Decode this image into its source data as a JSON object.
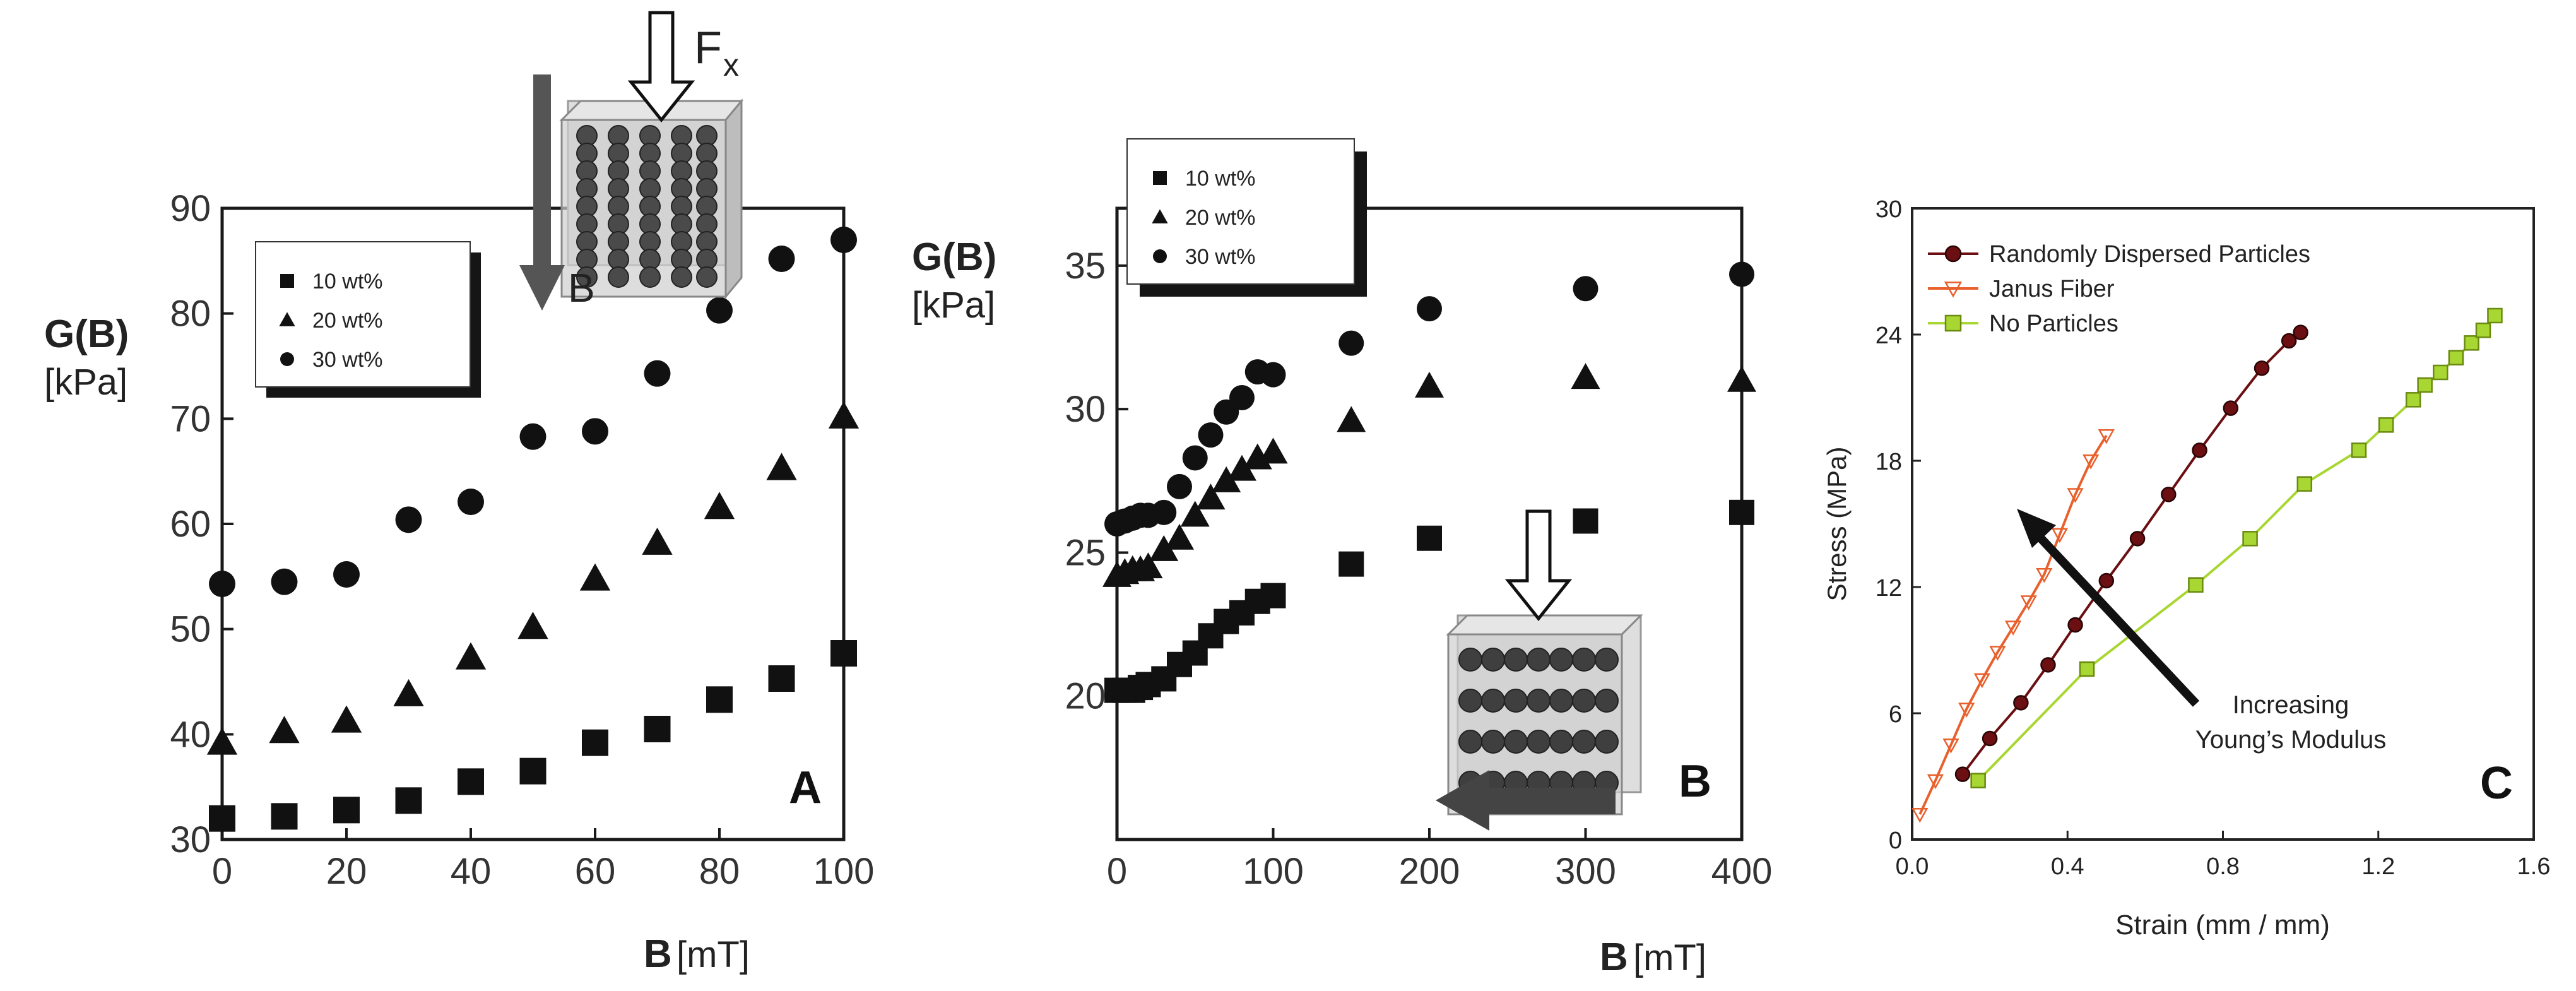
{
  "chart_data": [
    {
      "panel": "A",
      "type": "scatter",
      "xlabel_bold": "B",
      "xlabel_unit": "[mT]",
      "ylabel_bold": "G(B)",
      "ylabel_unit": "[kPa]",
      "xlim": [
        0,
        100
      ],
      "ylim": [
        30,
        90
      ],
      "xticks": [
        "0",
        "20",
        "40",
        "60",
        "80",
        "100"
      ],
      "yticks": [
        "30",
        "40",
        "50",
        "60",
        "70",
        "80",
        "90"
      ],
      "legend": "top-left",
      "inset_labels": [
        "F",
        "x",
        "B"
      ],
      "series": [
        {
          "name": "10 wt%",
          "marker": "square",
          "x": [
            0,
            10,
            20,
            30,
            40,
            50,
            60,
            70,
            80,
            90,
            100
          ],
          "y": [
            32,
            32.2,
            32.8,
            33.7,
            35.5,
            36.5,
            39.2,
            40.5,
            43.3,
            45.3,
            47.7
          ]
        },
        {
          "name": "20 wt%",
          "marker": "triangle",
          "x": [
            0,
            10,
            20,
            30,
            40,
            50,
            60,
            70,
            80,
            90,
            100
          ],
          "y": [
            39.2,
            40.3,
            41.3,
            43.8,
            47.3,
            50.2,
            54.8,
            58.2,
            61.6,
            65.3,
            70.2
          ]
        },
        {
          "name": "30 wt%",
          "marker": "circle",
          "x": [
            0,
            10,
            20,
            30,
            40,
            50,
            60,
            70,
            80,
            90,
            100
          ],
          "y": [
            54.3,
            54.5,
            55.2,
            60.4,
            62.1,
            68.3,
            68.8,
            74.3,
            80.3,
            85.2,
            87
          ]
        }
      ]
    },
    {
      "panel": "B",
      "type": "scatter",
      "xlabel_bold": "B",
      "xlabel_unit": "[mT]",
      "ylabel_bold": "G(B)",
      "ylabel_unit": "[kPa]",
      "xlim": [
        0,
        400
      ],
      "ylim": [
        15,
        37
      ],
      "xticks": [
        "0",
        "100",
        "200",
        "300",
        "400"
      ],
      "yticks": [
        "20",
        "25",
        "30",
        "35"
      ],
      "legend": "top-left",
      "series": [
        {
          "name": "10 wt%",
          "marker": "square",
          "x": [
            0,
            5,
            10,
            15,
            20,
            30,
            40,
            50,
            60,
            70,
            80,
            90,
            100,
            150,
            200,
            300,
            400
          ],
          "y": [
            20.2,
            20.2,
            20.2,
            20.3,
            20.4,
            20.6,
            21.1,
            21.5,
            22.1,
            22.6,
            22.9,
            23.3,
            23.5,
            24.6,
            25.5,
            26.1,
            26.4
          ]
        },
        {
          "name": "20 wt%",
          "marker": "triangle",
          "x": [
            0,
            5,
            10,
            15,
            20,
            30,
            40,
            50,
            60,
            70,
            80,
            90,
            100,
            150,
            200,
            300,
            400
          ],
          "y": [
            24.2,
            24.3,
            24.4,
            24.4,
            24.5,
            25.1,
            25.5,
            26.3,
            26.9,
            27.5,
            27.9,
            28.3,
            28.5,
            29.6,
            30.8,
            31.1,
            31
          ]
        },
        {
          "name": "30 wt%",
          "marker": "circle",
          "x": [
            0,
            5,
            10,
            15,
            20,
            30,
            40,
            50,
            60,
            70,
            80,
            90,
            100,
            150,
            200,
            300,
            400
          ],
          "y": [
            26,
            26.1,
            26.2,
            26.3,
            26.3,
            26.4,
            27.3,
            28.3,
            29.1,
            29.9,
            30.4,
            31.3,
            31.2,
            32.3,
            33.5,
            34.2,
            34.7
          ]
        }
      ]
    },
    {
      "panel": "C",
      "type": "line",
      "xlabel": "Strain (mm / mm)",
      "ylabel": "Stress (MPa)",
      "xlim": [
        0,
        1.6
      ],
      "ylim": [
        0,
        30
      ],
      "xticks": [
        "0.0",
        "0.4",
        "0.8",
        "1.2",
        "1.6"
      ],
      "yticks": [
        "0",
        "6",
        "12",
        "18",
        "24",
        "30"
      ],
      "legend": "top-left",
      "annotation": [
        "Increasing",
        "Young’s Modulus"
      ],
      "series": [
        {
          "name": "Randomly Dispersed Particles",
          "marker": "circle",
          "color": "#6b0f12",
          "x": [
            0.13,
            0.2,
            0.28,
            0.35,
            0.42,
            0.5,
            0.58,
            0.66,
            0.74,
            0.82,
            0.9,
            0.97,
            1.0
          ],
          "y": [
            3.1,
            4.8,
            6.5,
            8.3,
            10.2,
            12.3,
            14.3,
            16.4,
            18.5,
            20.5,
            22.4,
            23.7,
            24.1
          ]
        },
        {
          "name": "Janus Fiber",
          "marker": "triangle-down",
          "color": "#e8602c",
          "x": [
            0.02,
            0.06,
            0.1,
            0.14,
            0.18,
            0.22,
            0.26,
            0.3,
            0.34,
            0.38,
            0.42,
            0.46,
            0.5
          ],
          "y": [
            1.2,
            2.8,
            4.5,
            6.2,
            7.6,
            8.9,
            10.1,
            11.3,
            12.6,
            14.5,
            16.4,
            18.0,
            19.2
          ]
        },
        {
          "name": "No Particles",
          "marker": "square",
          "color": "#a8d632",
          "x": [
            0.17,
            0.45,
            0.73,
            0.87,
            1.01,
            1.15,
            1.22,
            1.29,
            1.32,
            1.36,
            1.4,
            1.44,
            1.47,
            1.5
          ],
          "y": [
            2.8,
            8.1,
            12.1,
            14.3,
            16.9,
            18.5,
            19.7,
            20.9,
            21.6,
            22.2,
            22.9,
            23.6,
            24.2,
            24.9
          ]
        }
      ]
    }
  ]
}
